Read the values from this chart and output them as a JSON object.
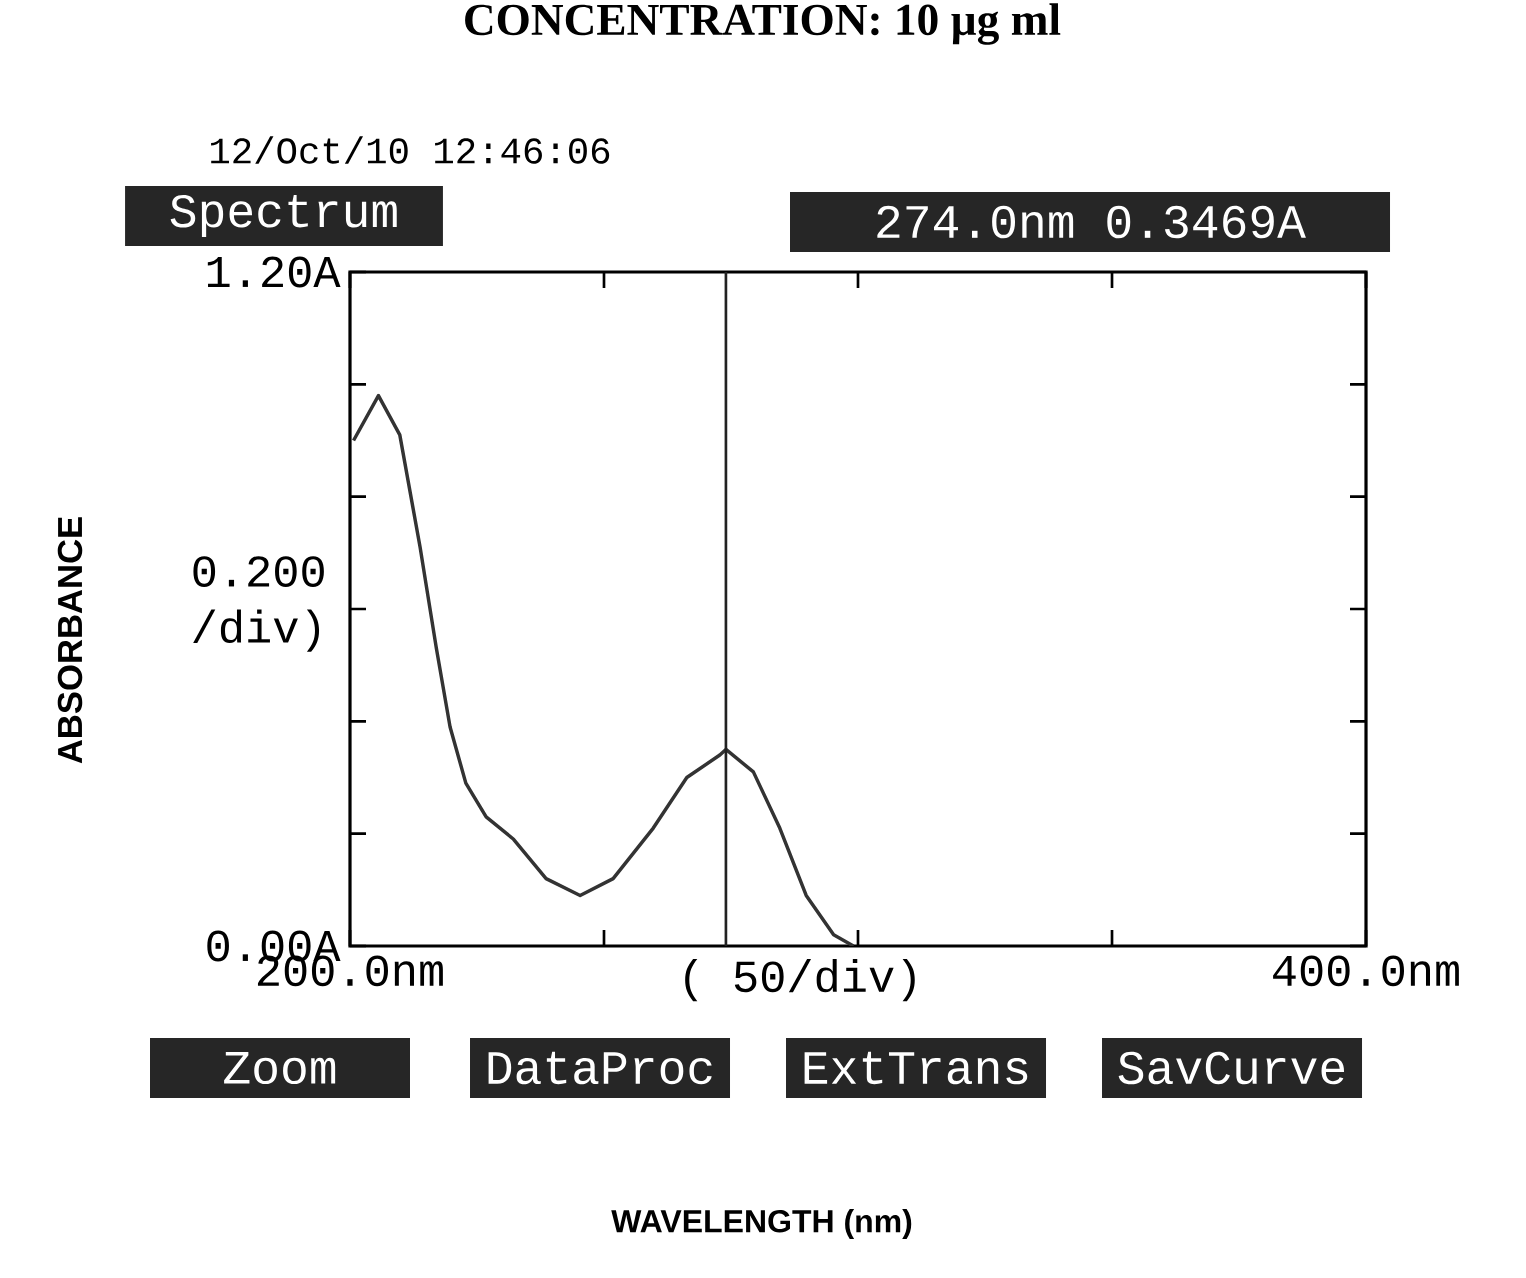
{
  "chart_data": {
    "type": "line",
    "title": "CONCENTRATION: 10 µg ml",
    "xlabel": "( 50/div)",
    "ylabel": "0.200 /div)",
    "x": [
      200.7,
      205.6,
      209.8,
      213.8,
      217,
      219.7,
      222.8,
      226.8,
      232.2,
      238.6,
      245.3,
      251.8,
      259.7,
      266.3,
      272.8,
      274,
      279.4,
      284.6,
      289.8,
      295.2,
      299.1
    ],
    "series": [
      {
        "color": "#333333",
        "values": [
          0.9,
          0.98,
          0.91,
          0.71,
          0.53,
          0.39,
          0.29,
          0.23,
          0.19,
          0.12,
          0.09,
          0.12,
          0.21,
          0.3,
          0.34,
          0.35,
          0.31,
          0.21,
          0.09,
          0.02,
          0.0
        ]
      }
    ],
    "xlim": [
      200,
      400
    ],
    "ylim": [
      0,
      1.2
    ],
    "xticks": [
      {
        "value": 200,
        "label": "200.0nm"
      },
      {
        "value": 250,
        "label": null
      },
      {
        "value": 300,
        "label": null
      },
      {
        "value": 350,
        "label": null
      },
      {
        "value": 400,
        "label": "400.0nm"
      }
    ],
    "yticks": [
      {
        "value": 0,
        "label": "0.00A"
      },
      {
        "value": 0.2,
        "label": null
      },
      {
        "value": 0.4,
        "label": null
      },
      {
        "value": 0.6,
        "label": null
      },
      {
        "value": 0.8,
        "label": null
      },
      {
        "value": 1.0,
        "label": null
      },
      {
        "value": 1.2,
        "label": "1.20A"
      }
    ],
    "ref_lines": [
      {
        "axis": "x",
        "value": 274,
        "color": "#222222"
      }
    ],
    "line_style": "solid",
    "annotations": [
      "12/Oct/10 12:46:06",
      "Spectrum",
      "274.0nm 0.3469A",
      "WAVELENGTH (nm)",
      "Zoom",
      "DataProc",
      "ExtTrans",
      "SavCurve",
      "ABSORBANCE"
    ]
  }
}
